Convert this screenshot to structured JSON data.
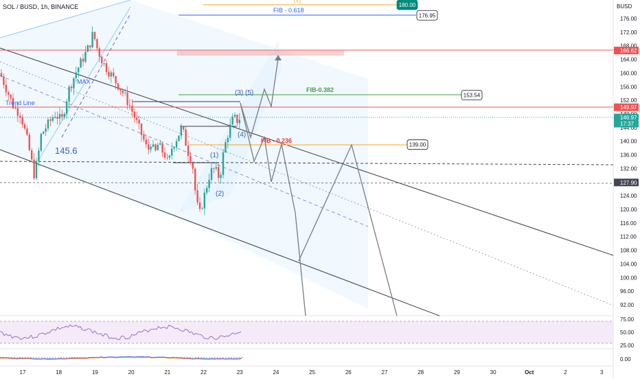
{
  "header": {
    "symbol_title": "SOL / BUSD, 1h, BINANCE"
  },
  "currency": "BUSD",
  "colors": {
    "up": "#26a69a",
    "down": "#ef5350",
    "channel": "#363a45",
    "fib_blue": "#2962ff",
    "fib_green": "#43a047",
    "fib_red": "#e53935",
    "fib_orange": "#f5a623",
    "rsi": "#7e57c2",
    "projection": "#787b86"
  },
  "chart_data": {
    "type": "candlestick",
    "ylim": [
      88,
      178
    ],
    "yticks": [
      "176.00",
      "172.00",
      "168.00",
      "164.00",
      "160.00",
      "156.00",
      "152.00",
      "148.00",
      "144.00",
      "140.00",
      "136.00",
      "132.00",
      "128.00",
      "124.00",
      "120.00",
      "116.00",
      "112.00",
      "108.00",
      "104.00",
      "100.00",
      "96.00",
      "92.00"
    ],
    "xticks": [
      "17",
      "18",
      "19",
      "20",
      "21",
      "22",
      "23",
      "24",
      "25",
      "26",
      "27",
      "28",
      "29",
      "30",
      "Oct",
      "2",
      "3"
    ],
    "price_labels": [
      {
        "name": "fib-0618-price",
        "value": 176.95,
        "text": "176.95",
        "style": "outline"
      },
      {
        "name": "fib-0382-price",
        "value": 153.54,
        "text": "153.54",
        "style": "outline"
      },
      {
        "name": "fib-0236-price",
        "value": 139.0,
        "text": "139.00",
        "style": "outline"
      },
      {
        "name": "target-price",
        "value": 180.0,
        "text": "180.00",
        "style": "teal"
      }
    ],
    "axis_labels": [
      {
        "name": "red-line-axis",
        "text": "166.62",
        "value": 166.62,
        "color": "#ef5350"
      },
      {
        "name": "red-line2-axis",
        "text": "149.97",
        "value": 149.97,
        "color": "#ef5350"
      },
      {
        "name": "last-price-axis",
        "text": "146.97",
        "sub": "17:37",
        "value": 146.97,
        "color": "#26a69a"
      },
      {
        "name": "dashed-level-axis",
        "text": "127.90",
        "value": 127.9,
        "color": "#434651"
      }
    ],
    "fib_levels": [
      {
        "name": "fib-0618-label",
        "label": "FIB - 0.618",
        "value": 176.95
      },
      {
        "name": "fib-0382-label",
        "label": "FIB-0.382",
        "value": 153.54
      },
      {
        "name": "fib-0236-label",
        "label": "FIB - 0.236",
        "value": 139.0
      }
    ],
    "annotations": {
      "max": "MAX",
      "trend_line": "Trend Line",
      "low_value": "145.6",
      "waves": [
        "(1)",
        "(2)",
        "(3)",
        "(4)",
        "(5)"
      ],
      "top_partial": "(+)"
    },
    "rsi": {
      "ticks": [
        "75.00",
        "50.00",
        "25.00"
      ]
    },
    "macd": {
      "ticks": [
        "0.00"
      ]
    }
  }
}
